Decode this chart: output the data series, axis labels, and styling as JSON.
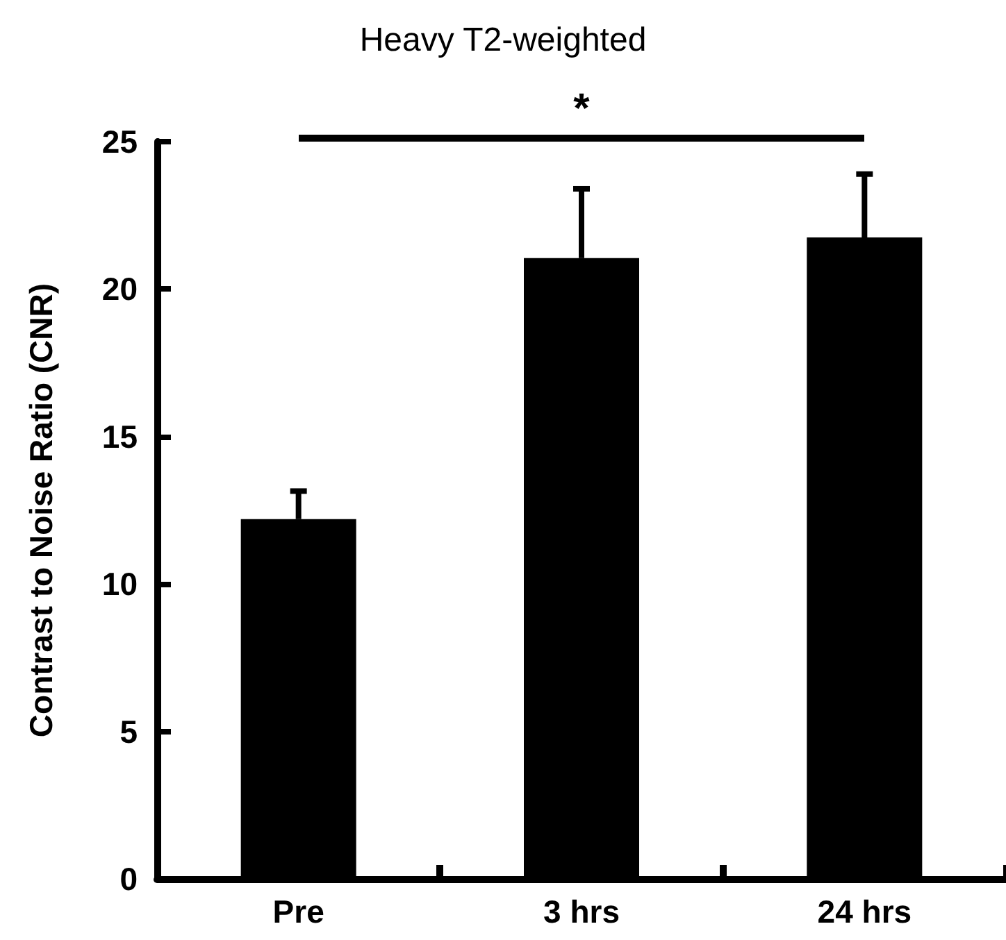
{
  "chart_data": {
    "type": "bar",
    "title": "Heavy T2-weighted",
    "ylabel": "Contrast to Noise Ratio (CNR)",
    "categories": [
      "Pre",
      "3 hrs",
      "24 hrs"
    ],
    "values": [
      12.2,
      21.05,
      21.75
    ],
    "errors": [
      [
        12.2,
        13.15
      ],
      [
        21.05,
        23.4
      ],
      [
        21.75,
        23.9
      ]
    ],
    "color": "#000000",
    "ylim": [
      0,
      25
    ],
    "yticks": [
      0,
      5,
      10,
      15,
      20,
      25
    ],
    "grid": false,
    "annotations": [
      "*"
    ]
  }
}
